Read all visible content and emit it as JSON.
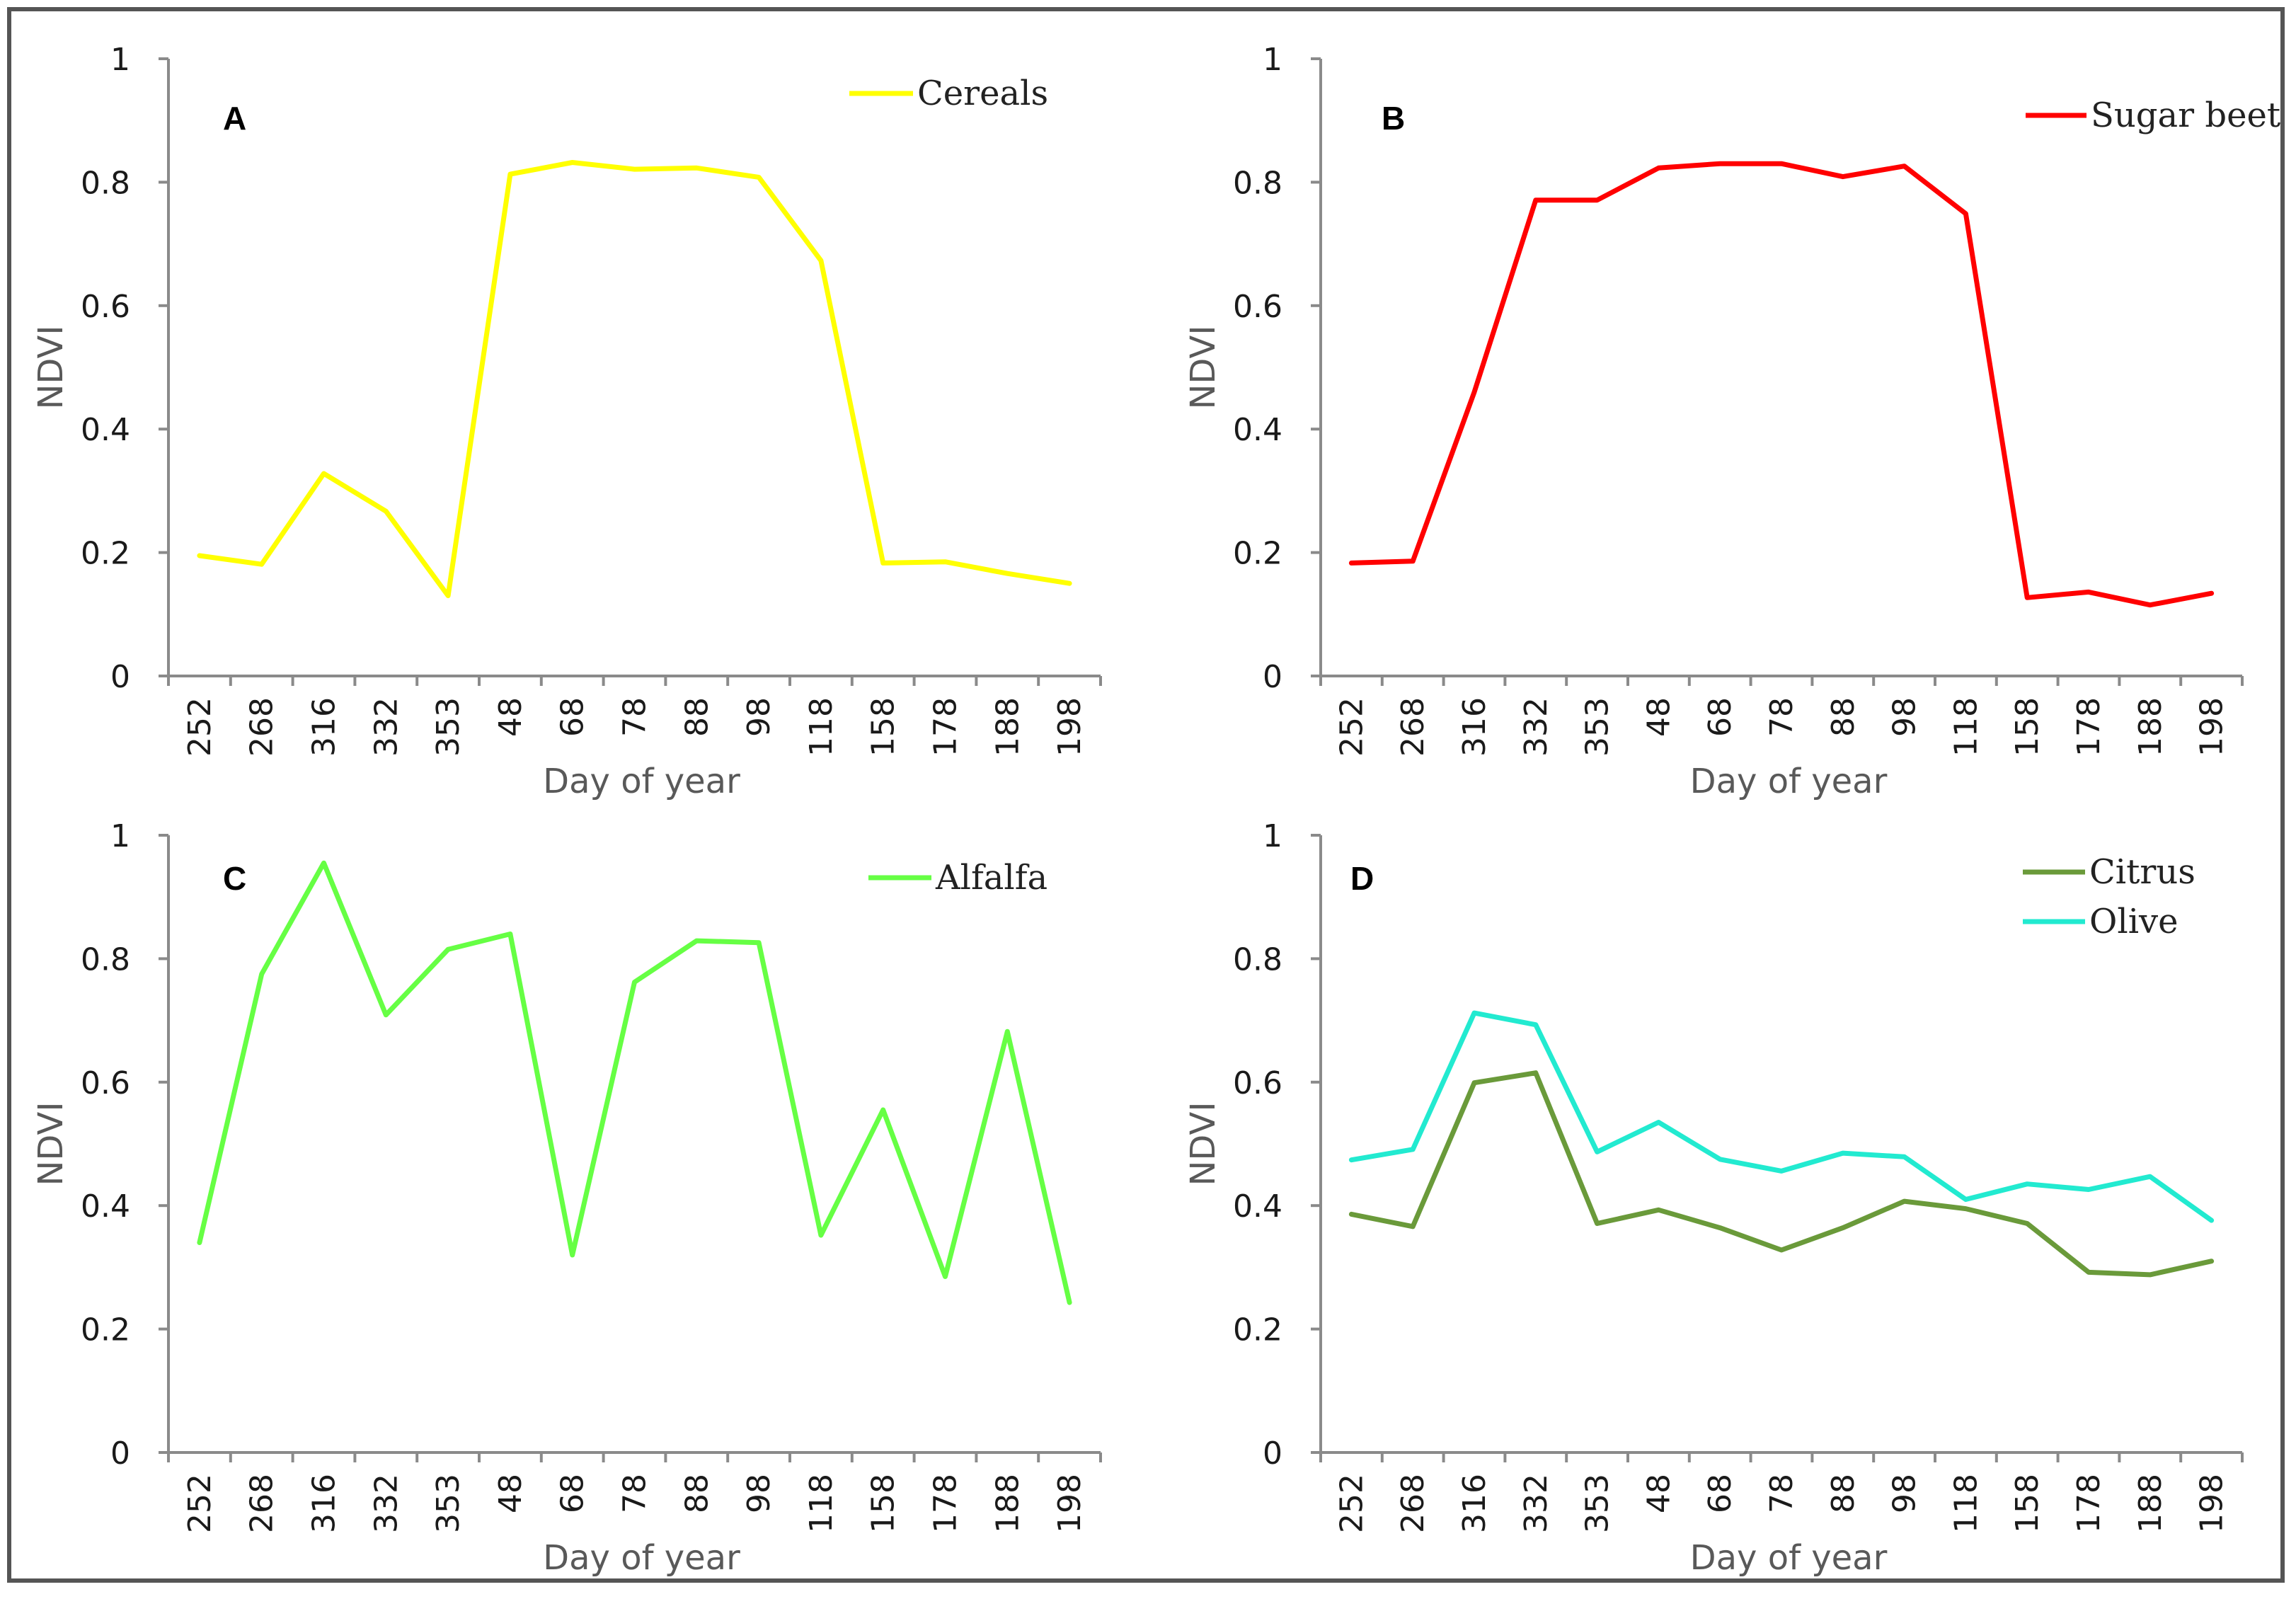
{
  "chart_data": [
    {
      "type": "line",
      "panel_label": "A",
      "categories": [
        "252",
        "268",
        "316",
        "332",
        "353",
        "48",
        "68",
        "78",
        "88",
        "98",
        "118",
        "158",
        "178",
        "188",
        "198"
      ],
      "series": [
        {
          "name": "Cereals",
          "color": "#ffff00",
          "values": [
            0.195,
            0.181,
            0.328,
            0.267,
            0.13,
            0.813,
            0.832,
            0.821,
            0.823,
            0.808,
            0.673,
            0.183,
            0.185,
            0.166,
            0.15
          ]
        }
      ],
      "xlabel": "Day of year",
      "ylabel": "NDVI",
      "ylim": [
        0,
        1
      ],
      "yticks": [
        "0",
        "0.2",
        "0.4",
        "0.6",
        "0.8",
        "1"
      ],
      "grid": false,
      "legend_position": "top-right"
    },
    {
      "type": "line",
      "panel_label": "B",
      "categories": [
        "252",
        "268",
        "316",
        "332",
        "353",
        "48",
        "68",
        "78",
        "88",
        "98",
        "118",
        "158",
        "178",
        "188",
        "198"
      ],
      "series": [
        {
          "name": "Sugar beet",
          "color": "#ff0000",
          "values": [
            0.183,
            0.186,
            0.46,
            0.771,
            0.771,
            0.823,
            0.83,
            0.83,
            0.809,
            0.826,
            0.749,
            0.127,
            0.136,
            0.115,
            0.134
          ]
        }
      ],
      "xlabel": "Day of year",
      "ylabel": "NDVI",
      "ylim": [
        0,
        1
      ],
      "yticks": [
        "0",
        "0.2",
        "0.4",
        "0.6",
        "0.8",
        "1"
      ],
      "grid": false,
      "legend_position": "top-right"
    },
    {
      "type": "line",
      "panel_label": "C",
      "categories": [
        "252",
        "268",
        "316",
        "332",
        "353",
        "48",
        "68",
        "78",
        "88",
        "98",
        "118",
        "158",
        "178",
        "188",
        "198"
      ],
      "series": [
        {
          "name": "Alfalfa",
          "color": "#66ff44",
          "values": [
            0.34,
            0.775,
            0.955,
            0.709,
            0.815,
            0.84,
            0.32,
            0.762,
            0.829,
            0.826,
            0.352,
            0.555,
            0.285,
            0.682,
            0.243
          ]
        }
      ],
      "xlabel": "Day of year",
      "ylabel": "NDVI",
      "ylim": [
        0,
        1
      ],
      "yticks": [
        "0",
        "0.2",
        "0.4",
        "0.6",
        "0.8",
        "1"
      ],
      "grid": false,
      "legend_position": "top-right"
    },
    {
      "type": "line",
      "panel_label": "D",
      "categories": [
        "252",
        "268",
        "316",
        "332",
        "353",
        "48",
        "68",
        "78",
        "88",
        "98",
        "118",
        "158",
        "178",
        "188",
        "198"
      ],
      "series": [
        {
          "name": "Citrus",
          "color": "#6a9a3a",
          "values": [
            0.386,
            0.366,
            0.599,
            0.615,
            0.371,
            0.393,
            0.364,
            0.328,
            0.364,
            0.407,
            0.395,
            0.371,
            0.292,
            0.288,
            0.31
          ]
        },
        {
          "name": "Olive",
          "color": "#22ead0",
          "values": [
            0.474,
            0.491,
            0.712,
            0.693,
            0.487,
            0.535,
            0.475,
            0.456,
            0.485,
            0.479,
            0.41,
            0.435,
            0.426,
            0.447,
            0.376
          ]
        }
      ],
      "xlabel": "Day of year",
      "ylabel": "NDVI",
      "ylim": [
        0,
        1
      ],
      "yticks": [
        "0",
        "0.2",
        "0.4",
        "0.6",
        "0.8",
        "1"
      ],
      "grid": false,
      "legend_position": "top-right"
    }
  ]
}
